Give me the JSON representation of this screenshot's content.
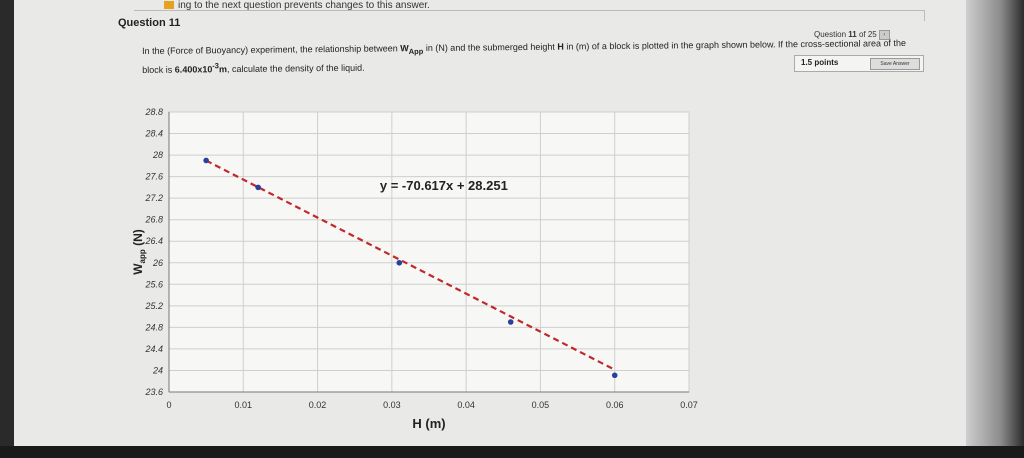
{
  "notice": {
    "text": "ing to the next question prevents changes to this answer."
  },
  "question": {
    "title": "Question 11",
    "counter_prefix": "Question ",
    "counter_num": "11",
    "counter_of": " of 25",
    "points": "1.5 points",
    "save_label": "Save Answer",
    "prompt_part1": "In the (Force of Buoyancy) experiment, the relationship between ",
    "wapp": "W",
    "wapp_sub": "App",
    "prompt_part2": " in (N) and the submerged height ",
    "h": "H",
    "prompt_part3": " in (m) of a block is plotted in the graph shown below. If the cross-sectional area  of the block  is ",
    "area": "6.400x10",
    "area_exp": "-3",
    "area_unit": "m",
    "prompt_part4": ", calculate the density of the liquid."
  },
  "chart_data": {
    "type": "scatter",
    "xlabel": "H (m)",
    "ylabel": "Wapp (N)",
    "ylabel_main": "W",
    "ylabel_sub": "app",
    "ylabel_unit": " (N)",
    "xlim": [
      0,
      0.07
    ],
    "ylim": [
      23.6,
      28.8
    ],
    "xticks": [
      "0",
      "0.01",
      "0.02",
      "0.03",
      "0.04",
      "0.05",
      "0.06",
      "0.07"
    ],
    "yticks": [
      "23.6",
      "24",
      "24.4",
      "24.8",
      "25.2",
      "25.6",
      "26",
      "26.4",
      "26.8",
      "27.2",
      "27.6",
      "28",
      "28.4",
      "28.8"
    ],
    "points": [
      {
        "x": 0.005,
        "y": 27.9
      },
      {
        "x": 0.012,
        "y": 27.4
      },
      {
        "x": 0.031,
        "y": 26.0
      },
      {
        "x": 0.046,
        "y": 24.9
      },
      {
        "x": 0.06,
        "y": 23.91
      }
    ],
    "trendline": {
      "slope": -70.617,
      "intercept": 28.251,
      "x_from": 0.005,
      "x_to": 0.06,
      "equation": "y = -70.617x + 28.251"
    },
    "grid": true,
    "colors": {
      "trendline": "#c0282a",
      "points": "#2b3f9c",
      "grid": "#cfcfcf"
    }
  }
}
